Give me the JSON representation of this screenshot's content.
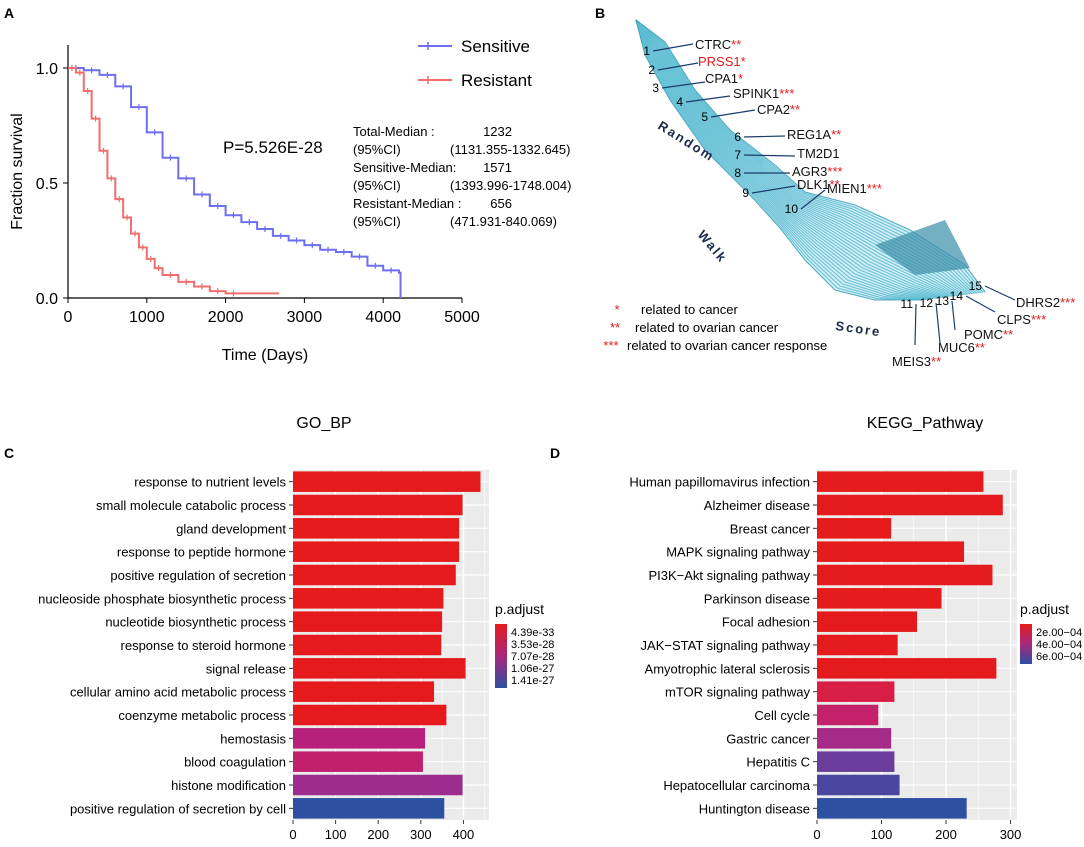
{
  "panel_labels": {
    "a": "A",
    "b": "B",
    "c": "C",
    "d": "D"
  },
  "colors": {
    "sensitive": "#6e6ef0",
    "resistant": "#f06e6e",
    "bar_high": "#e41a1c",
    "bar_low": "#2c4fa0",
    "ribbon": "#4ab3cc",
    "star": "#e41a1c",
    "grid_bg": "#ebebeb"
  },
  "chart_data": [
    {
      "id": "survival",
      "type": "line",
      "title": "",
      "xlabel": "Time (Days)",
      "ylabel": "Fraction survival",
      "xlim": [
        0,
        5000
      ],
      "ylim": [
        0,
        1.1
      ],
      "x_ticks": [
        "0",
        "1000",
        "2000",
        "3000",
        "4000",
        "5000"
      ],
      "y_ticks": [
        "0.0",
        "0.5",
        "1.0"
      ],
      "pvalue": "P=5.526E-28",
      "legend": [
        "Sensitive",
        "Resistant"
      ],
      "stats": [
        [
          "Total-Median :",
          "1232"
        ],
        [
          "(95%CI)",
          "(1131.355-1332.645)"
        ],
        [
          "Sensitive-Median:",
          "1571"
        ],
        [
          "(95%CI)",
          "(1393.996-1748.004)"
        ],
        [
          "Resistant-Median :",
          "656"
        ],
        [
          "(95%CI)",
          "(471.931-840.069)"
        ]
      ],
      "series": [
        {
          "name": "Sensitive",
          "x": [
            0,
            200,
            400,
            600,
            800,
            1000,
            1200,
            1400,
            1600,
            1800,
            2000,
            2200,
            2400,
            2600,
            2800,
            3000,
            3200,
            3400,
            3600,
            3800,
            4000,
            4200,
            4220
          ],
          "y": [
            1.0,
            0.99,
            0.97,
            0.92,
            0.83,
            0.72,
            0.61,
            0.52,
            0.45,
            0.4,
            0.36,
            0.33,
            0.3,
            0.27,
            0.25,
            0.23,
            0.21,
            0.2,
            0.18,
            0.14,
            0.12,
            0.11,
            0.0
          ]
        },
        {
          "name": "Resistant",
          "x": [
            0,
            100,
            200,
            300,
            400,
            500,
            600,
            700,
            800,
            900,
            1000,
            1100,
            1200,
            1400,
            1600,
            1800,
            2000,
            2200,
            2680
          ],
          "y": [
            1.0,
            0.98,
            0.9,
            0.78,
            0.64,
            0.52,
            0.43,
            0.35,
            0.28,
            0.22,
            0.17,
            0.13,
            0.1,
            0.07,
            0.05,
            0.03,
            0.02,
            0.02,
            0.02
          ]
        }
      ]
    },
    {
      "id": "go_bp",
      "type": "bar",
      "title": "GO_BP",
      "xlim": [
        0,
        460
      ],
      "x_ticks": [
        "0",
        "100",
        "200",
        "300",
        "400"
      ],
      "legend_title": "p.adjust",
      "legend_labels": [
        "4.39e-33",
        "3.53e-28",
        "7.07e-28",
        "1.06e-27",
        "1.41e-27"
      ],
      "categories": [
        "response to nutrient levels",
        "small molecule catabolic process",
        "gland development",
        "response to peptide hormone",
        "positive regulation of secretion",
        "nucleoside phosphate biosynthetic process",
        "nucleotide biosynthetic process",
        "response to steroid hormone",
        "signal release",
        "cellular amino acid metabolic process",
        "coenzyme metabolic process",
        "hemostasis",
        "blood coagulation",
        "histone modification",
        "positive regulation of secretion by cell"
      ],
      "values": [
        440,
        398,
        390,
        390,
        382,
        353,
        350,
        348,
        405,
        331,
        360,
        310,
        305,
        398,
        355
      ],
      "colors": [
        "#e41a1c",
        "#e41a1c",
        "#e41a1c",
        "#e41a1c",
        "#e41a1c",
        "#e41a1c",
        "#e41a1c",
        "#e41a1c",
        "#e41a1c",
        "#e41a1c",
        "#e41a1c",
        "#b8217a",
        "#c0206e",
        "#9c2c8e",
        "#2c4fa0"
      ]
    },
    {
      "id": "kegg",
      "type": "bar",
      "title": "KEGG_Pathway",
      "xlim": [
        0,
        310
      ],
      "x_ticks": [
        "0",
        "100",
        "200",
        "300"
      ],
      "legend_title": "p.adjust",
      "legend_labels": [
        "2e.00−04",
        "4e.00−04",
        "6e.00−04"
      ],
      "categories": [
        "Human papillomavirus infection",
        "Alzheimer disease",
        "Breast cancer",
        "MAPK signaling pathway",
        "PI3K−Akt signaling pathway",
        "Parkinson disease",
        "Focal adhesion",
        "JAK−STAT signaling pathway",
        "Amyotrophic lateral sclerosis",
        "mTOR signaling pathway",
        "Cell cycle",
        "Gastric cancer",
        "Hepatitis C",
        "Hepatocellular carcinoma",
        "Huntington disease"
      ],
      "values": [
        258,
        288,
        115,
        228,
        272,
        193,
        155,
        125,
        278,
        120,
        95,
        115,
        120,
        128,
        232
      ],
      "colors": [
        "#e41a1c",
        "#e41a1c",
        "#e41a1c",
        "#e41a1c",
        "#e41a1c",
        "#e41a1c",
        "#e41a1c",
        "#e41a1c",
        "#e41a1c",
        "#d81e45",
        "#c4216b",
        "#a62a88",
        "#6a3c9c",
        "#4a46a0",
        "#2c4fa0"
      ]
    }
  ],
  "ribbon": {
    "genes": [
      {
        "num": "1",
        "name": "CTRC",
        "stars": "**",
        "red_name": false
      },
      {
        "num": "2",
        "name": "PRSS1",
        "stars": "*",
        "red_name": true
      },
      {
        "num": "3",
        "name": "CPA1",
        "stars": "*",
        "red_name": false
      },
      {
        "num": "4",
        "name": "SPINK1",
        "stars": "***",
        "red_name": false
      },
      {
        "num": "5",
        "name": "CPA2",
        "stars": "**",
        "red_name": false
      },
      {
        "num": "6",
        "name": "REG1A",
        "stars": "**",
        "red_name": false
      },
      {
        "num": "7",
        "name": "TM2D1",
        "stars": "",
        "red_name": false
      },
      {
        "num": "8",
        "name": "AGR3",
        "stars": "***",
        "red_name": false
      },
      {
        "num": "9",
        "name": "DLK1",
        "stars": "**",
        "red_name": false
      },
      {
        "num": "10",
        "name": "MIEN1",
        "stars": "***",
        "red_name": false
      },
      {
        "num": "11",
        "name": "MEIS3",
        "stars": "**",
        "red_name": false
      },
      {
        "num": "12",
        "name": "MUC6",
        "stars": "**",
        "red_name": false
      },
      {
        "num": "13",
        "name": "POMC",
        "stars": "**",
        "red_name": false
      },
      {
        "num": "14",
        "name": "CLPS",
        "stars": "***",
        "red_name": false
      },
      {
        "num": "15",
        "name": "DHRS2",
        "stars": "***",
        "red_name": false
      }
    ],
    "axis_words": [
      "Random",
      "Walk",
      "Score"
    ],
    "legend": [
      {
        "stars": "*",
        "text": "related to cancer"
      },
      {
        "stars": "**",
        "text": "related to ovarian cancer"
      },
      {
        "stars": "***",
        "text": "related to ovarian cancer response"
      }
    ]
  }
}
